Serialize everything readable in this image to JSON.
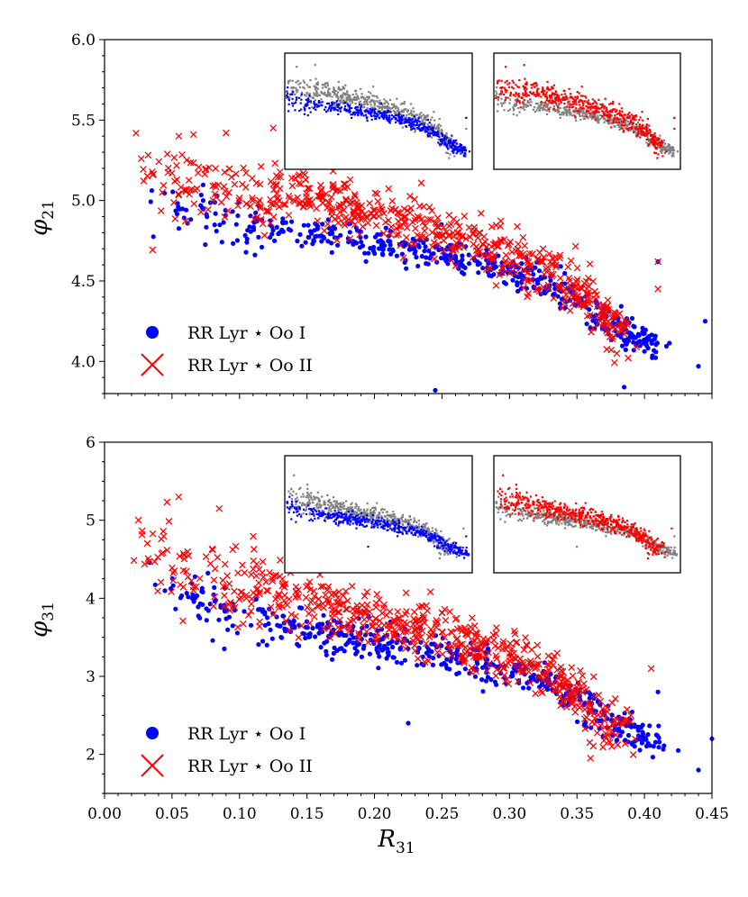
{
  "chart_data": [
    {
      "type": "scatter",
      "title": "",
      "xlabel": "R31",
      "ylabel": "φ21",
      "x_label_main": "R",
      "x_label_sub": "31",
      "y_label_main": "φ",
      "y_label_sub": "21",
      "xlim": [
        0.0,
        0.45
      ],
      "ylim": [
        3.8,
        6.0
      ],
      "x_ticks": [
        0.0,
        0.05,
        0.1,
        0.15,
        0.2,
        0.25,
        0.3,
        0.35,
        0.4,
        0.45
      ],
      "y_ticks": [
        4.0,
        4.5,
        5.0,
        5.5,
        6.0
      ],
      "y_tick_labels": [
        "4.0",
        "4.5",
        "5.0",
        "5.5",
        "6.0"
      ],
      "legend_position": "lower-left",
      "insets": [
        "top-center: Oo I (blue) over all stars (gray)",
        "top-right: Oo II (red) over all stars (gray)"
      ],
      "series": [
        {
          "name": "RR Lyr ⋆ Oo I",
          "color": "#0000ff",
          "marker": "circle",
          "trend": [
            [
              0.04,
              4.97
            ],
            [
              0.08,
              4.9
            ],
            [
              0.12,
              4.84
            ],
            [
              0.16,
              4.79
            ],
            [
              0.2,
              4.74
            ],
            [
              0.24,
              4.68
            ],
            [
              0.28,
              4.6
            ],
            [
              0.32,
              4.52
            ],
            [
              0.35,
              4.38
            ],
            [
              0.37,
              4.25
            ],
            [
              0.39,
              4.16
            ],
            [
              0.41,
              4.1
            ]
          ],
          "spread": 0.05,
          "count": 520,
          "outliers": [
            [
              0.445,
              4.25
            ],
            [
              0.44,
              3.97
            ],
            [
              0.245,
              3.82
            ],
            [
              0.385,
              3.84
            ],
            [
              0.41,
              4.62
            ]
          ]
        },
        {
          "name": "RR Lyr ⋆ Oo II",
          "color": "#ff0000",
          "marker": "x",
          "trend": [
            [
              0.025,
              5.2
            ],
            [
              0.05,
              5.14
            ],
            [
              0.08,
              5.08
            ],
            [
              0.12,
              5.03
            ],
            [
              0.16,
              4.98
            ],
            [
              0.2,
              4.92
            ],
            [
              0.24,
              4.83
            ],
            [
              0.28,
              4.73
            ],
            [
              0.32,
              4.6
            ],
            [
              0.35,
              4.45
            ],
            [
              0.37,
              4.28
            ],
            [
              0.385,
              4.18
            ]
          ],
          "spread": 0.08,
          "count": 620,
          "outliers": [
            [
              0.125,
              5.45
            ],
            [
              0.055,
              5.4
            ],
            [
              0.09,
              5.42
            ],
            [
              0.41,
              4.62
            ],
            [
              0.41,
              4.45
            ]
          ]
        }
      ]
    },
    {
      "type": "scatter",
      "title": "",
      "xlabel": "R31",
      "ylabel": "φ31",
      "x_label_main": "R",
      "x_label_sub": "31",
      "y_label_main": "φ",
      "y_label_sub": "31",
      "xlim": [
        0.0,
        0.45
      ],
      "ylim": [
        1.5,
        6.0
      ],
      "x_ticks": [
        0.0,
        0.05,
        0.1,
        0.15,
        0.2,
        0.25,
        0.3,
        0.35,
        0.4,
        0.45
      ],
      "x_tick_labels": [
        "0.00",
        "0.05",
        "0.10",
        "0.15",
        "0.20",
        "0.25",
        "0.30",
        "0.35",
        "0.40",
        "0.45"
      ],
      "y_ticks": [
        2,
        3,
        4,
        5,
        6
      ],
      "y_tick_labels": [
        "2",
        "3",
        "4",
        "5",
        "6"
      ],
      "legend_position": "lower-left",
      "insets": [
        "top-center: Oo I (blue) over all stars (gray)",
        "top-right: Oo II (red) over all stars (gray)"
      ],
      "series": [
        {
          "name": "RR Lyr ⋆ Oo I",
          "color": "#0000ff",
          "marker": "circle",
          "trend": [
            [
              0.04,
              4.15
            ],
            [
              0.08,
              3.9
            ],
            [
              0.12,
              3.72
            ],
            [
              0.16,
              3.57
            ],
            [
              0.2,
              3.43
            ],
            [
              0.24,
              3.3
            ],
            [
              0.28,
              3.17
            ],
            [
              0.32,
              2.98
            ],
            [
              0.35,
              2.7
            ],
            [
              0.37,
              2.45
            ],
            [
              0.39,
              2.3
            ],
            [
              0.41,
              2.25
            ]
          ],
          "spread": 0.12,
          "count": 520,
          "outliers": [
            [
              0.45,
              2.2
            ],
            [
              0.44,
              1.8
            ],
            [
              0.41,
              2.8
            ],
            [
              0.225,
              2.4
            ],
            [
              0.425,
              2.05
            ]
          ]
        },
        {
          "name": "RR Lyr ⋆ Oo II",
          "color": "#ff0000",
          "marker": "x",
          "trend": [
            [
              0.025,
              4.55
            ],
            [
              0.05,
              4.4
            ],
            [
              0.08,
              4.25
            ],
            [
              0.12,
              4.08
            ],
            [
              0.16,
              3.92
            ],
            [
              0.2,
              3.75
            ],
            [
              0.24,
              3.6
            ],
            [
              0.28,
              3.4
            ],
            [
              0.32,
              3.1
            ],
            [
              0.35,
              2.75
            ],
            [
              0.37,
              2.45
            ],
            [
              0.385,
              2.3
            ]
          ],
          "spread": 0.18,
          "count": 620,
          "outliers": [
            [
              0.055,
              5.3
            ],
            [
              0.085,
              5.15
            ],
            [
              0.405,
              3.1
            ],
            [
              0.39,
              2.5
            ],
            [
              0.36,
              1.95
            ]
          ]
        }
      ]
    }
  ],
  "legend": {
    "oo1_label": "RR Lyr ⋆ Oo I",
    "oo2_label": "RR Lyr ⋆ Oo II"
  },
  "colors": {
    "oo1": "#0000ff",
    "oo2": "#ff0000",
    "all_stars": "#808080",
    "axis": "#000000"
  }
}
